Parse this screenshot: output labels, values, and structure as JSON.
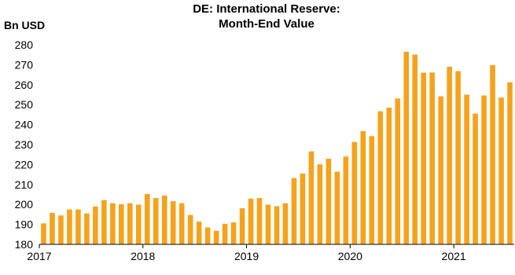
{
  "chart_data": {
    "type": "bar",
    "title": "DE: International Reserve:",
    "subtitle": "Month-End Value",
    "ylabel": "Bn USD",
    "xlabel": "",
    "ylim": [
      180,
      280
    ],
    "yticks": [
      "180",
      "190",
      "200",
      "210",
      "220",
      "230",
      "240",
      "250",
      "260",
      "270",
      "280"
    ],
    "xticks": [
      "2017",
      "2018",
      "2019",
      "2020",
      "2021"
    ],
    "bar_color": "#f7a21b",
    "legend": "none",
    "grid": false,
    "x": [
      "2017-01",
      "2017-02",
      "2017-03",
      "2017-04",
      "2017-05",
      "2017-06",
      "2017-07",
      "2017-08",
      "2017-09",
      "2017-10",
      "2017-11",
      "2017-12",
      "2018-01",
      "2018-02",
      "2018-03",
      "2018-04",
      "2018-05",
      "2018-06",
      "2018-07",
      "2018-08",
      "2018-09",
      "2018-10",
      "2018-11",
      "2018-12",
      "2019-01",
      "2019-02",
      "2019-03",
      "2019-04",
      "2019-05",
      "2019-06",
      "2019-07",
      "2019-08",
      "2019-09",
      "2019-10",
      "2019-11",
      "2019-12",
      "2020-01",
      "2020-02",
      "2020-03",
      "2020-04",
      "2020-05",
      "2020-06",
      "2020-07",
      "2020-08",
      "2020-09",
      "2020-10",
      "2020-11",
      "2020-12",
      "2021-01",
      "2021-02",
      "2021-03",
      "2021-04",
      "2021-05",
      "2021-06",
      "2021-07"
    ],
    "values": [
      190.5,
      195.8,
      194.5,
      197.5,
      197.5,
      195.5,
      199.0,
      202.2,
      200.6,
      200.1,
      200.6,
      199.9,
      205.2,
      203.2,
      204.5,
      201.6,
      200.6,
      194.7,
      191.4,
      188.5,
      186.8,
      190.3,
      191.0,
      198.1,
      202.9,
      203.2,
      199.9,
      199.1,
      200.6,
      213.2,
      215.5,
      226.6,
      220.1,
      222.9,
      216.4,
      224.0,
      231.3,
      236.8,
      234.2,
      246.7,
      248.5,
      253.1,
      276.5,
      275.1,
      266.0,
      266.1,
      254.2,
      269.0,
      266.8,
      255.0,
      245.5,
      254.6,
      269.8,
      253.6,
      261.2
    ]
  }
}
